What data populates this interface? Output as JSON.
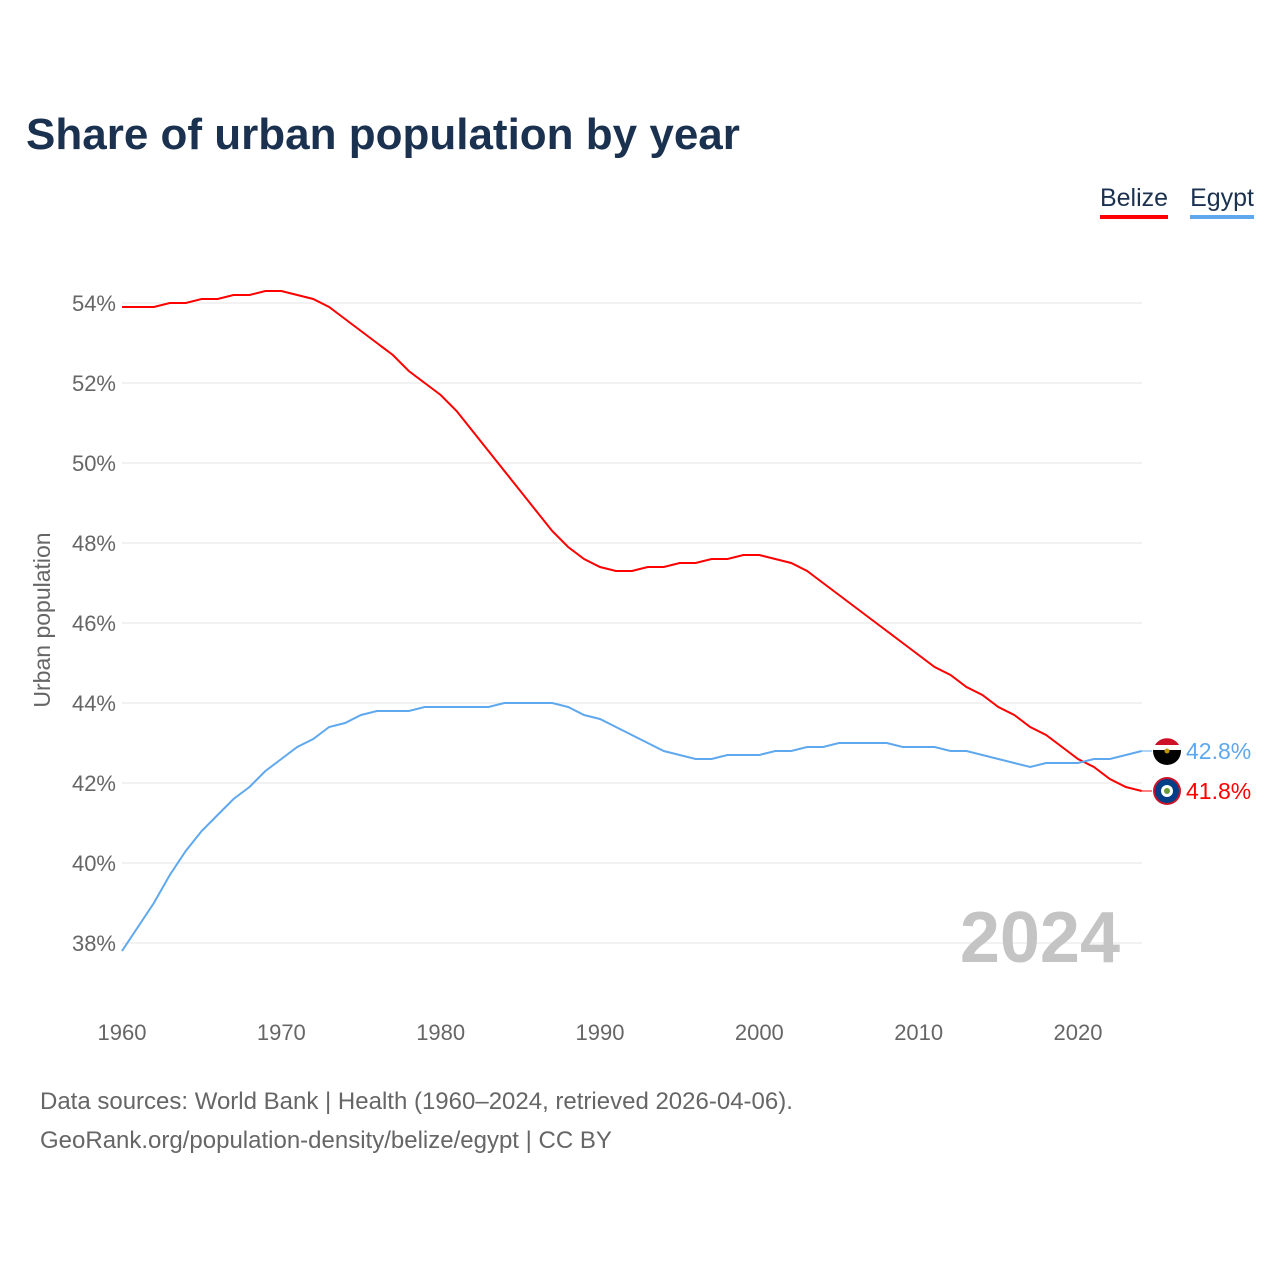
{
  "chart_data": {
    "type": "line",
    "title": "Share of urban population by year",
    "xlabel": "",
    "ylabel": "Urban population",
    "xlim": [
      1960,
      2024
    ],
    "ylim": [
      37,
      55.5
    ],
    "yticks": [
      38,
      40,
      42,
      44,
      46,
      48,
      50,
      52,
      54
    ],
    "ytick_labels": [
      "38%",
      "40%",
      "42%",
      "44%",
      "46%",
      "48%",
      "50%",
      "52%",
      "54%"
    ],
    "xticks": [
      1960,
      1970,
      1980,
      1990,
      2000,
      2010,
      2020
    ],
    "xtick_labels": [
      "1960",
      "1970",
      "1980",
      "1990",
      "2000",
      "2010",
      "2020"
    ],
    "grid": true,
    "legend_position": "top-right",
    "year_watermark": "2024",
    "x": [
      1960,
      1961,
      1962,
      1963,
      1964,
      1965,
      1966,
      1967,
      1968,
      1969,
      1970,
      1971,
      1972,
      1973,
      1974,
      1975,
      1976,
      1977,
      1978,
      1979,
      1980,
      1981,
      1982,
      1983,
      1984,
      1985,
      1986,
      1987,
      1988,
      1989,
      1990,
      1991,
      1992,
      1993,
      1994,
      1995,
      1996,
      1997,
      1998,
      1999,
      2000,
      2001,
      2002,
      2003,
      2004,
      2005,
      2006,
      2007,
      2008,
      2009,
      2010,
      2011,
      2012,
      2013,
      2014,
      2015,
      2016,
      2017,
      2018,
      2019,
      2020,
      2021,
      2022,
      2023,
      2024
    ],
    "series": [
      {
        "name": "Belize",
        "color": "#ff0000",
        "end_label": "41.8%",
        "values": [
          53.9,
          53.9,
          53.9,
          54.0,
          54.0,
          54.1,
          54.1,
          54.2,
          54.2,
          54.3,
          54.3,
          54.2,
          54.1,
          53.9,
          53.6,
          53.3,
          53.0,
          52.7,
          52.3,
          52.0,
          51.7,
          51.3,
          50.8,
          50.3,
          49.8,
          49.3,
          48.8,
          48.3,
          47.9,
          47.6,
          47.4,
          47.3,
          47.3,
          47.4,
          47.4,
          47.5,
          47.5,
          47.6,
          47.6,
          47.7,
          47.7,
          47.6,
          47.5,
          47.3,
          47.0,
          46.7,
          46.4,
          46.1,
          45.8,
          45.5,
          45.2,
          44.9,
          44.7,
          44.4,
          44.2,
          43.9,
          43.7,
          43.4,
          43.2,
          42.9,
          42.6,
          42.4,
          42.1,
          41.9,
          41.8
        ]
      },
      {
        "name": "Egypt",
        "color": "#5fa8ee",
        "end_label": "42.8%",
        "values": [
          37.8,
          38.4,
          39.0,
          39.7,
          40.3,
          40.8,
          41.2,
          41.6,
          41.9,
          42.3,
          42.6,
          42.9,
          43.1,
          43.4,
          43.5,
          43.7,
          43.8,
          43.8,
          43.8,
          43.9,
          43.9,
          43.9,
          43.9,
          43.9,
          44.0,
          44.0,
          44.0,
          44.0,
          43.9,
          43.7,
          43.6,
          43.4,
          43.2,
          43.0,
          42.8,
          42.7,
          42.6,
          42.6,
          42.7,
          42.7,
          42.7,
          42.8,
          42.8,
          42.9,
          42.9,
          43.0,
          43.0,
          43.0,
          43.0,
          42.9,
          42.9,
          42.9,
          42.8,
          42.8,
          42.7,
          42.6,
          42.5,
          42.4,
          42.5,
          42.5,
          42.5,
          42.6,
          42.6,
          42.7,
          42.8
        ]
      }
    ]
  },
  "footer": {
    "line1": "Data sources: World Bank | Health (1960–2024, retrieved 2026-04-06).",
    "line2": "GeoRank.org/population-density/belize/egypt | CC BY"
  }
}
